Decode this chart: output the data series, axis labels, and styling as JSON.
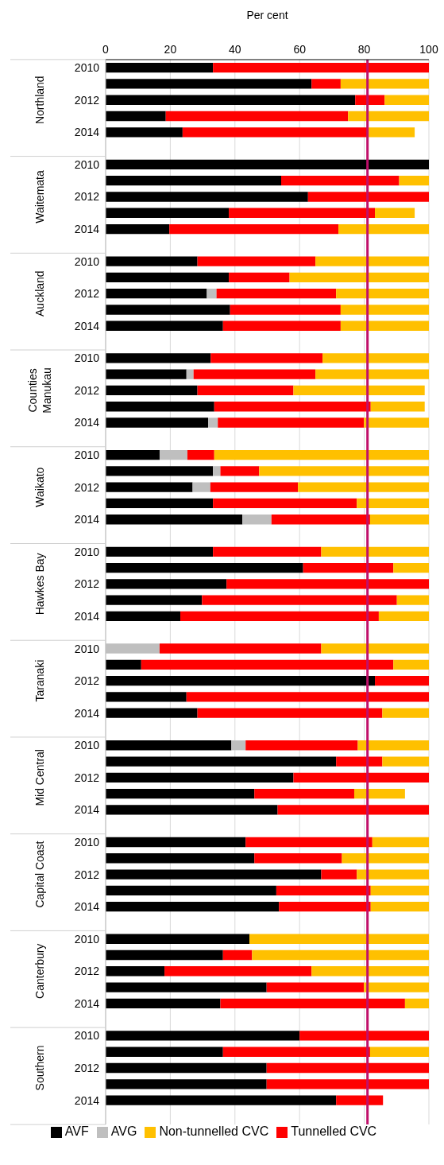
{
  "chart_data": {
    "type": "bar",
    "orientation": "horizontal",
    "stacked": true,
    "xlabel": "Per cent",
    "categories": [
      "2010",
      null,
      "2012",
      null,
      "2014",
      null,
      "2010",
      null,
      "2012",
      null,
      "2014",
      null,
      "2010",
      null,
      "2012",
      null,
      "2014",
      null,
      "2010",
      null,
      "2012",
      null,
      "2014",
      null,
      "2010",
      null,
      "2012",
      null,
      "2014",
      null,
      "2010",
      null,
      "2012",
      null,
      "2014",
      null,
      "2010",
      null,
      "2012",
      null,
      "2014",
      null,
      "2010",
      null,
      "2012",
      null,
      "2014",
      null,
      "2010",
      null,
      "2012",
      null,
      "2014",
      null,
      "2010",
      null,
      "2012",
      null,
      "2014",
      null,
      "2010",
      null,
      "2012",
      null,
      "2014",
      null
    ],
    "annotations": [
      "Northland",
      "Waitemata",
      "Auckland",
      "Counties Manukau",
      "Waikato",
      "Hawkes Bay",
      "Taranaki",
      "Mid Central",
      "Capital Coast",
      "Canterbury",
      "Southern"
    ],
    "series": [
      {
        "name": "AVF",
        "color": "#000000",
        "values": [
          33.2,
          63.7,
          77.2,
          18.6,
          23.8,
          null,
          100,
          54.3,
          62.6,
          38.1,
          19.7,
          null,
          28.4,
          38.1,
          31.3,
          38.5,
          36.3,
          null,
          32.5,
          25.0,
          28.4,
          33.6,
          31.7,
          null,
          16.7,
          33.2,
          26.9,
          33.2,
          42.3,
          null,
          33.2,
          61.1,
          37.4,
          29.8,
          23.1,
          null,
          0,
          11.0,
          83.3,
          25.0,
          28.4,
          null,
          38.9,
          71.3,
          58.1,
          46.0,
          53.2,
          null,
          43.3,
          46.0,
          66.7,
          52.8,
          53.6,
          null,
          44.5,
          36.3,
          18.2,
          49.8,
          35.5,
          null,
          60.0,
          36.3,
          49.8,
          49.8,
          71.3,
          null
        ]
      },
      {
        "name": "AVG",
        "color": "#bfbfbf",
        "values": [
          0,
          0,
          0,
          0,
          0,
          null,
          0,
          0,
          0,
          0,
          0,
          null,
          0,
          0,
          3.0,
          0,
          0,
          null,
          0,
          2.2,
          0,
          0,
          3.0,
          null,
          8.6,
          2.3,
          5.5,
          0,
          9.0,
          null,
          0,
          0,
          0,
          0,
          0,
          null,
          16.7,
          0,
          0,
          0,
          0,
          null,
          4.4,
          0,
          0,
          0,
          0,
          null,
          0,
          0,
          0,
          0,
          0,
          null,
          0,
          0,
          0,
          0,
          0,
          null,
          0,
          0,
          0,
          0,
          0,
          null
        ]
      },
      {
        "name": "Tunnelled CVC",
        "color": "#ff0000",
        "values": [
          66.8,
          9.0,
          9.1,
          56.4,
          57.4,
          null,
          0,
          36.5,
          37.4,
          45.2,
          52.3,
          null,
          36.5,
          18.8,
          37.0,
          34.2,
          36.4,
          null,
          34.6,
          37.7,
          29.7,
          48.4,
          45.2,
          null,
          8.3,
          12.0,
          27.1,
          44.5,
          30.5,
          null,
          33.5,
          27.9,
          62.6,
          60.3,
          61.4,
          null,
          50.0,
          78.0,
          16.7,
          75.0,
          57.2,
          null,
          34.7,
          14.3,
          41.9,
          30.9,
          46.8,
          null,
          39.2,
          27.1,
          11.0,
          29.2,
          28.4,
          null,
          0,
          9.0,
          45.5,
          30.1,
          57.1,
          null,
          40.0,
          45.5,
          50.2,
          50.2,
          14.5,
          null
        ]
      },
      {
        "name": "Non-tunnelled CVC",
        "color": "#ffc000",
        "values": [
          0,
          27.3,
          13.7,
          25.0,
          14.4,
          null,
          0,
          9.2,
          0,
          12.3,
          28.0,
          null,
          35.1,
          43.1,
          28.7,
          27.3,
          27.3,
          null,
          32.9,
          35.1,
          40.6,
          16.7,
          20.1,
          null,
          66.4,
          52.5,
          40.5,
          22.3,
          18.2,
          null,
          33.3,
          11.0,
          0,
          9.9,
          15.5,
          null,
          33.3,
          11.0,
          0,
          0,
          14.4,
          null,
          22.0,
          14.4,
          0,
          15.7,
          0,
          null,
          17.5,
          26.9,
          22.3,
          18.0,
          18.0,
          null,
          55.5,
          54.7,
          36.3,
          20.1,
          7.4,
          null,
          0,
          18.2,
          0,
          0,
          0,
          null
        ]
      }
    ],
    "xlim": [
      0,
      100
    ],
    "xticks": [
      0,
      20,
      40,
      60,
      80,
      100
    ],
    "ref_lines": [
      {
        "axis": "x",
        "value": 81,
        "color": "#c0106a"
      }
    ],
    "grid": "x",
    "legend": "bottom"
  }
}
